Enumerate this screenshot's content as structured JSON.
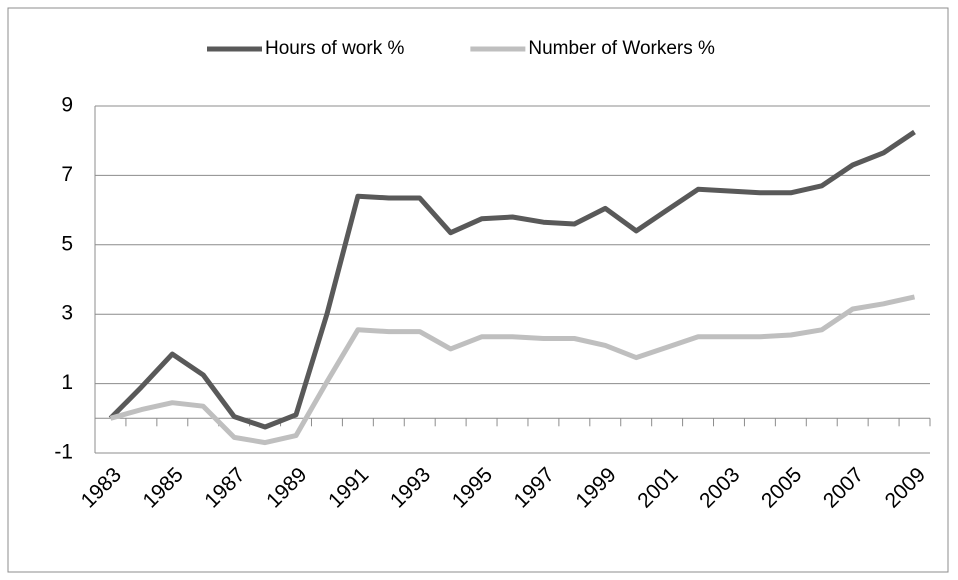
{
  "chart_data": {
    "type": "line",
    "categories": [
      "1983",
      null,
      "1985",
      null,
      "1987",
      null,
      "1989",
      null,
      "1991",
      null,
      "1993",
      null,
      "1995",
      null,
      "1997",
      null,
      "1999",
      null,
      "2001",
      null,
      "2003",
      null,
      "2005",
      null,
      "2007",
      null,
      "2009"
    ],
    "series": [
      {
        "name": "Hours of work %",
        "color": "#595959",
        "values": [
          0,
          0.9,
          1.85,
          1.25,
          0.05,
          -0.25,
          0.1,
          3.0,
          6.4,
          6.35,
          6.35,
          5.35,
          5.75,
          5.8,
          5.65,
          5.6,
          6.05,
          5.4,
          6.0,
          6.6,
          6.55,
          6.5,
          6.5,
          6.7,
          7.3,
          7.65,
          8.25
        ]
      },
      {
        "name": "Number of Workers %",
        "color": "#bfbfbf",
        "values": [
          0,
          0.25,
          0.45,
          0.35,
          -0.55,
          -0.7,
          -0.5,
          1.05,
          2.55,
          2.5,
          2.5,
          2.0,
          2.35,
          2.35,
          2.3,
          2.3,
          2.1,
          1.75,
          2.05,
          2.35,
          2.35,
          2.35,
          2.4,
          2.55,
          3.15,
          3.3,
          3.5
        ]
      }
    ],
    "ylim": [
      -1,
      9
    ],
    "yticks": [
      -1,
      1,
      3,
      5,
      7,
      9
    ],
    "grid": true,
    "legend": "top"
  }
}
